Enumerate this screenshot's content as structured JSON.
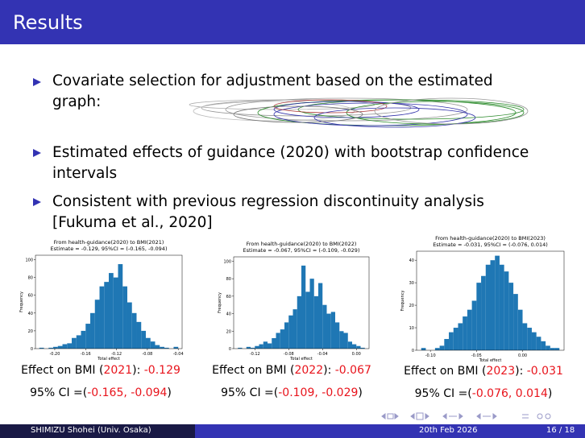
{
  "header": {
    "title": "Results"
  },
  "bullets": [
    "Covariate selection for adjustment based on the estimated graph:",
    "Estimated effects of guidance (2020) with bootstrap confidence intervals",
    "Consistent with previous regression discontinuity analysis [Fukuma et al., 2020]"
  ],
  "chart_data": [
    {
      "type": "histogram",
      "title": "From health-guidance(2020) to BMI(2021)",
      "subtitle": "Estimate = -0.129, 95%CI = (-0.165, -0.094)",
      "xlabel": "Total effect",
      "ylabel": "Frequency",
      "color": "#1f77b4",
      "bins": [
        -0.22,
        -0.214,
        -0.208,
        -0.202,
        -0.196,
        -0.19,
        -0.184,
        -0.178,
        -0.172,
        -0.166,
        -0.16,
        -0.154,
        -0.148,
        -0.142,
        -0.136,
        -0.13,
        -0.124,
        -0.118,
        -0.112,
        -0.106,
        -0.1,
        -0.094,
        -0.088,
        -0.082,
        -0.076,
        -0.07,
        -0.064,
        -0.058,
        -0.052,
        -0.046,
        -0.04
      ],
      "values": [
        1,
        0,
        1,
        2,
        3,
        5,
        6,
        12,
        15,
        20,
        28,
        40,
        55,
        70,
        75,
        85,
        80,
        95,
        70,
        52,
        40,
        30,
        20,
        12,
        8,
        4,
        2,
        1,
        0,
        2
      ],
      "xlim": [
        -0.225,
        -0.035
      ],
      "xticks": [
        {
          "value": -0.2,
          "label": "-0.20"
        },
        {
          "value": -0.16,
          "label": "-0.16"
        },
        {
          "value": -0.12,
          "label": "-0.12"
        },
        {
          "value": -0.08,
          "label": "-0.08"
        },
        {
          "value": -0.04,
          "label": "-0.04"
        }
      ],
      "ylim": [
        0,
        105
      ],
      "yticks": [
        0,
        20,
        40,
        60,
        80,
        100
      ]
    },
    {
      "type": "histogram",
      "title": "From health-guidance(2020) to BMI(2022)",
      "subtitle": "Estimate = -0.067, 95%CI = (-0.109, -0.029)",
      "xlabel": "Total effect",
      "ylabel": "Frequency",
      "color": "#1f77b4",
      "bins": [
        -0.14,
        -0.135,
        -0.13,
        -0.125,
        -0.12,
        -0.115,
        -0.11,
        -0.105,
        -0.1,
        -0.095,
        -0.09,
        -0.085,
        -0.08,
        -0.075,
        -0.07,
        -0.065,
        -0.06,
        -0.055,
        -0.05,
        -0.045,
        -0.04,
        -0.035,
        -0.03,
        -0.025,
        -0.02,
        -0.015,
        -0.01,
        -0.005,
        0,
        0.005,
        0.01
      ],
      "values": [
        1,
        0,
        2,
        1,
        3,
        5,
        8,
        6,
        12,
        18,
        22,
        30,
        38,
        45,
        60,
        95,
        65,
        80,
        60,
        75,
        50,
        40,
        42,
        30,
        20,
        18,
        8,
        5,
        3,
        1
      ],
      "xlim": [
        -0.145,
        0.015
      ],
      "xticks": [
        {
          "value": -0.12,
          "label": "-0.12"
        },
        {
          "value": -0.08,
          "label": "-0.08"
        },
        {
          "value": -0.04,
          "label": "-0.04"
        },
        {
          "value": 0,
          "label": "0.00"
        }
      ],
      "ylim": [
        0,
        105
      ],
      "yticks": [
        0,
        20,
        40,
        60,
        80,
        100
      ]
    },
    {
      "type": "histogram",
      "title": "From health-guidance(2020) to BMI(2023)",
      "subtitle": "Estimate = -0.031, 95%CI = (-0.076, 0.014)",
      "xlabel": "Total effect",
      "ylabel": "Frequency",
      "color": "#1f77b4",
      "bins": [
        -0.11,
        -0.105,
        -0.1,
        -0.095,
        -0.09,
        -0.085,
        -0.08,
        -0.075,
        -0.07,
        -0.065,
        -0.06,
        -0.055,
        -0.05,
        -0.045,
        -0.04,
        -0.035,
        -0.03,
        -0.025,
        -0.02,
        -0.015,
        -0.01,
        -0.005,
        0,
        0.005,
        0.01,
        0.015,
        0.02,
        0.025,
        0.03,
        0.035,
        0.04
      ],
      "values": [
        1,
        0,
        0,
        1,
        2,
        5,
        8,
        10,
        12,
        15,
        18,
        22,
        30,
        33,
        38,
        40,
        42,
        38,
        35,
        30,
        25,
        18,
        12,
        10,
        8,
        6,
        4,
        2,
        1,
        1
      ],
      "xlim": [
        -0.115,
        0.045
      ],
      "xticks": [
        {
          "value": -0.1,
          "label": "-0.10"
        },
        {
          "value": -0.05,
          "label": "-0.05"
        },
        {
          "value": 0,
          "label": "0.00"
        }
      ],
      "ylim": [
        0,
        44
      ],
      "yticks": [
        0,
        10,
        20,
        30,
        40
      ]
    }
  ],
  "captions": [
    {
      "line1": [
        {
          "text": "Effect on BMI (",
          "color": "#000000"
        },
        {
          "text": "2021",
          "color": "#e8141c"
        },
        {
          "text": "): ",
          "color": "#000000"
        },
        {
          "text": "-0.129",
          "color": "#e8141c"
        }
      ],
      "line2": [
        {
          "text": "95% CI =(",
          "color": "#000000"
        },
        {
          "text": "-0.165, -0.094",
          "color": "#e8141c"
        },
        {
          "text": ")",
          "color": "#000000"
        }
      ]
    },
    {
      "line1": [
        {
          "text": "Effect on BMI (",
          "color": "#000000"
        },
        {
          "text": "2022",
          "color": "#e8141c"
        },
        {
          "text": "): ",
          "color": "#000000"
        },
        {
          "text": "-0.067",
          "color": "#e8141c"
        }
      ],
      "line2": [
        {
          "text": "95% CI =(",
          "color": "#000000"
        },
        {
          "text": "-0.109, -0.029",
          "color": "#e8141c"
        },
        {
          "text": ")",
          "color": "#000000"
        }
      ]
    },
    {
      "line1": [
        {
          "text": "Effect on BMI (",
          "color": "#000000"
        },
        {
          "text": "2023",
          "color": "#e8141c"
        },
        {
          "text": "): ",
          "color": "#000000"
        },
        {
          "text": "-0.031",
          "color": "#e8141c"
        }
      ],
      "line2": [
        {
          "text": "95% CI =(",
          "color": "#000000"
        },
        {
          "text": "-0.076, 0.014",
          "color": "#e8141c"
        },
        {
          "text": ")",
          "color": "#000000"
        }
      ]
    }
  ],
  "footer": {
    "author": "SHIMIZU Shohei (Univ. Osaka)",
    "date": "20th Feb 2026",
    "page": "16 / 18"
  }
}
